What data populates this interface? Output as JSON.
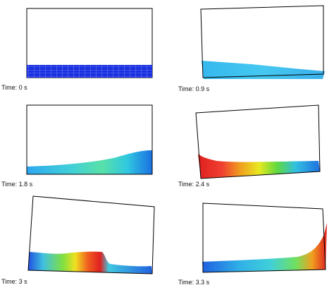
{
  "panels": [
    {
      "time_label": "Time: 0 s"
    },
    {
      "time_label": "Time: 0.9 s"
    },
    {
      "time_label": "Time: 1.8 s"
    },
    {
      "time_label": "Time: 2.4 s"
    },
    {
      "time_label": "Time: 3 s"
    },
    {
      "time_label": "Time: 3.3 s"
    }
  ],
  "colors": {
    "outline": "#000000",
    "mesh_blue": "#1428d8",
    "mesh_line": "#8aa0ff",
    "background": "#ffffff"
  }
}
